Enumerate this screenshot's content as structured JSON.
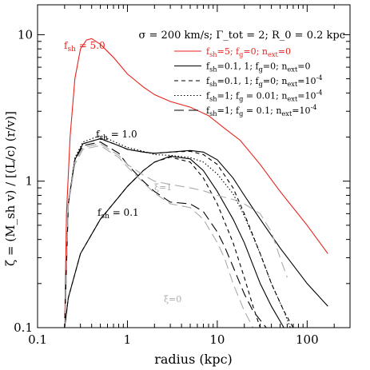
{
  "chart_data": {
    "type": "line",
    "xlabel": "radius (kpc)",
    "ylabel": "ζ = (M_sh v) / [(L/c) (r/v)]",
    "xscale": "log",
    "yscale": "log",
    "xlim": [
      0.1,
      300
    ],
    "ylim": [
      0.1,
      16
    ],
    "x_ticks": [
      {
        "value": 0.1,
        "label": "0.1"
      },
      {
        "value": 1,
        "label": "1"
      },
      {
        "value": 10,
        "label": "10"
      },
      {
        "value": 100,
        "label": "100"
      }
    ],
    "y_ticks": [
      {
        "value": 0.1,
        "label": "0.1"
      },
      {
        "value": 1,
        "label": "1"
      },
      {
        "value": 10,
        "label": "10"
      }
    ],
    "header": "σ = 200 km/s; Γ_tot = 2; R_0 = 0.2 kpc",
    "colors": {
      "red": "#e8221c",
      "black": "#000000",
      "gray": "#aaaaaa"
    },
    "legend": [
      {
        "label": "f_sh=5; f_g=0; n_ext=0",
        "color": "#e8221c",
        "dash": "solid"
      },
      {
        "label": "f_sh=0.1, 1; f_g=0; n_ext=0",
        "color": "#000000",
        "dash": "solid"
      },
      {
        "label": "f_sh=0.1, 1; f_g=0; n_ext=10^-4",
        "color": "#000000",
        "dash": "short-dash"
      },
      {
        "label": "f_sh=1; f_g = 0.01; n_ext=10^-4",
        "color": "#000000",
        "dash": "dotted"
      },
      {
        "label": "f_sh=1; f_g = 0.1; n_ext=10^-4",
        "color": "#000000",
        "dash": "long-dash"
      }
    ],
    "annotations": [
      {
        "text": "f_sh = 5.0",
        "color": "#e8221c"
      },
      {
        "text": "f_sh = 1.0",
        "color": "#000000"
      },
      {
        "text": "f_sh = 0.1",
        "color": "#000000"
      },
      {
        "text": "ξ=1",
        "color": "#aaaaaa"
      },
      {
        "text": "ξ=0",
        "color": "#aaaaaa"
      }
    ],
    "series": [
      {
        "color": "#e8221c",
        "dash": "solid",
        "x": [
          0.2,
          0.21,
          0.23,
          0.26,
          0.3,
          0.35,
          0.4,
          0.5,
          0.7,
          1.0,
          1.5,
          2.0,
          3.0,
          5.0,
          8.0,
          12,
          18,
          30,
          50,
          100,
          170
        ],
        "y": [
          0.1,
          0.6,
          2.0,
          5.0,
          8.0,
          9.2,
          9.4,
          8.6,
          7.0,
          5.4,
          4.4,
          3.9,
          3.5,
          3.2,
          2.8,
          2.3,
          1.9,
          1.3,
          0.85,
          0.5,
          0.32
        ]
      },
      {
        "color": "#000000",
        "dash": "solid",
        "x": [
          0.2,
          0.22,
          0.26,
          0.32,
          0.5,
          0.8,
          1.0,
          1.5,
          2.0,
          3.0,
          5.0,
          7.0,
          10,
          15,
          20,
          30,
          50,
          100,
          170
        ],
        "y": [
          0.1,
          0.7,
          1.4,
          1.8,
          1.95,
          1.75,
          1.65,
          1.58,
          1.55,
          1.58,
          1.62,
          1.58,
          1.4,
          1.05,
          0.8,
          0.55,
          0.35,
          0.2,
          0.14
        ]
      },
      {
        "color": "#000000",
        "dash": "solid",
        "x": [
          0.2,
          0.22,
          0.3,
          0.5,
          0.8,
          1.0,
          1.5,
          2.0,
          3.0,
          5.0,
          7.0,
          10,
          15,
          20,
          30,
          40,
          55
        ],
        "y": [
          0.1,
          0.16,
          0.32,
          0.55,
          0.78,
          0.92,
          1.18,
          1.35,
          1.48,
          1.42,
          1.18,
          0.85,
          0.55,
          0.38,
          0.2,
          0.14,
          0.1
        ]
      },
      {
        "color": "#000000",
        "dash": "short-dash",
        "x": [
          0.2,
          0.22,
          0.26,
          0.32,
          0.5,
          0.8,
          1.0,
          1.5,
          2.0,
          3.0,
          5.0,
          7.0,
          10,
          15,
          20,
          30,
          40,
          55,
          70
        ],
        "y": [
          0.1,
          0.7,
          1.4,
          1.8,
          1.95,
          1.75,
          1.65,
          1.58,
          1.55,
          1.58,
          1.6,
          1.52,
          1.3,
          0.9,
          0.6,
          0.32,
          0.2,
          0.13,
          0.1
        ]
      },
      {
        "color": "#000000",
        "dash": "short-dash",
        "x": [
          0.2,
          0.22,
          0.3,
          0.5,
          0.8,
          1.0,
          1.5,
          2.0,
          3.0,
          5.0,
          7.0,
          10,
          15,
          20,
          25,
          30
        ],
        "y": [
          0.1,
          0.16,
          0.32,
          0.55,
          0.78,
          0.92,
          1.18,
          1.35,
          1.46,
          1.35,
          1.05,
          0.7,
          0.38,
          0.22,
          0.14,
          0.1
        ]
      },
      {
        "color": "#000000",
        "dash": "dotted",
        "x": [
          0.2,
          0.22,
          0.26,
          0.32,
          0.5,
          0.8,
          1.0,
          1.5,
          2.0,
          3.0,
          5.0,
          7.0,
          10,
          15,
          20,
          30,
          40,
          55,
          65
        ],
        "y": [
          0.1,
          0.7,
          1.45,
          1.85,
          2.05,
          1.8,
          1.7,
          1.6,
          1.52,
          1.5,
          1.45,
          1.35,
          1.12,
          0.82,
          0.58,
          0.32,
          0.2,
          0.13,
          0.1
        ]
      },
      {
        "color": "#000000",
        "dash": "long-dash",
        "x": [
          0.2,
          0.22,
          0.26,
          0.32,
          0.5,
          0.8,
          1.0,
          1.5,
          2.0,
          3.0,
          5.0,
          7.0,
          10,
          12,
          15,
          20,
          25,
          35
        ],
        "y": [
          0.1,
          0.7,
          1.4,
          1.75,
          1.85,
          1.55,
          1.3,
          1.0,
          0.85,
          0.72,
          0.7,
          0.62,
          0.45,
          0.36,
          0.26,
          0.17,
          0.13,
          0.1
        ]
      },
      {
        "color": "#aaaaaa",
        "dash": "long-dash",
        "x": [
          0.2,
          0.22,
          0.26,
          0.32,
          0.5,
          0.8,
          1.0,
          1.5,
          2.0,
          3.0,
          5.0,
          7.0,
          10,
          15,
          20,
          30,
          40,
          50,
          60
        ],
        "y": [
          0.1,
          0.7,
          1.35,
          1.7,
          1.8,
          1.5,
          1.3,
          1.1,
          1.0,
          0.95,
          0.9,
          0.86,
          0.8,
          0.75,
          0.7,
          0.6,
          0.45,
          0.3,
          0.22
        ]
      },
      {
        "color": "#aaaaaa",
        "dash": "long-dash",
        "x": [
          0.2,
          0.22,
          0.26,
          0.32,
          0.5,
          0.8,
          1.0,
          1.5,
          2.0,
          3.0,
          5.0,
          7.0,
          10,
          12,
          15,
          20,
          25
        ],
        "y": [
          0.1,
          0.68,
          1.3,
          1.65,
          1.75,
          1.45,
          1.25,
          0.98,
          0.83,
          0.7,
          0.66,
          0.55,
          0.38,
          0.3,
          0.2,
          0.13,
          0.1
        ]
      }
    ]
  }
}
